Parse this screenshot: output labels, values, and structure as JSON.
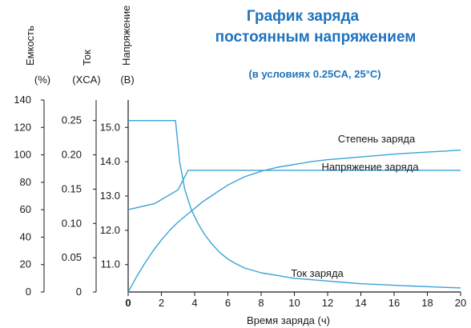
{
  "chart_data": {
    "type": "line",
    "title_line1": "График заряда",
    "title_line2": "постоянным напряжением",
    "subtitle": "(в условиях 0.25CA, 25°C)",
    "xlabel": "Время заряда (ч)",
    "xlim": [
      0,
      20
    ],
    "x_ticks": [
      "0",
      "2",
      "4",
      "6",
      "8",
      "10",
      "12",
      "14",
      "16",
      "18",
      "20"
    ],
    "axes": {
      "capacity": {
        "label": "Емкость",
        "unit": "(%)",
        "lim": [
          0,
          140
        ],
        "ticks": [
          "0",
          "20",
          "40",
          "60",
          "80",
          "100",
          "120",
          "140"
        ]
      },
      "current": {
        "label": "Ток",
        "unit": "(XCA)",
        "lim": [
          0,
          0.28
        ],
        "ticks": [
          "0",
          "0.05",
          "0.10",
          "0.15",
          "0.20",
          "0.25"
        ]
      },
      "voltage": {
        "label": "Напряжение",
        "unit": "(В)",
        "lim": [
          10.2,
          15.8
        ],
        "ticks": [
          "11.0",
          "12.0",
          "13.0",
          "14.0",
          "15.0"
        ]
      }
    },
    "series": [
      {
        "name": "Степень заряда",
        "axis": "capacity",
        "color": "#3aa3d6",
        "x": [
          0,
          0.5,
          1,
          1.5,
          2,
          2.5,
          3,
          3.5,
          4,
          4.5,
          5,
          5.5,
          6,
          6.5,
          7,
          7.5,
          8,
          9,
          10,
          11,
          12,
          13,
          14,
          15,
          16,
          17,
          18,
          19,
          20
        ],
        "values": [
          0,
          11,
          21,
          30,
          38,
          45,
          51,
          56,
          61,
          66,
          70,
          74,
          78,
          81,
          84,
          86,
          88,
          91,
          93,
          95,
          96.5,
          97.5,
          98.5,
          99.5,
          100.5,
          101.3,
          102,
          102.7,
          103.5
        ]
      },
      {
        "name": "Напряжение заряда",
        "axis": "voltage",
        "color": "#3aa3d6",
        "x": [
          0,
          1.6,
          3.0,
          3.6,
          4,
          6,
          8,
          10,
          12,
          14,
          16,
          18,
          20
        ],
        "values": [
          12.6,
          12.78,
          13.18,
          13.75,
          13.75,
          13.75,
          13.75,
          13.75,
          13.75,
          13.75,
          13.75,
          13.75,
          13.75
        ]
      },
      {
        "name": "Ток заряда",
        "axis": "current",
        "color": "#3aa3d6",
        "x": [
          0,
          1,
          2,
          2.85,
          3.1,
          3.4,
          3.8,
          4.2,
          4.6,
          5,
          5.5,
          6,
          6.5,
          7,
          8,
          9,
          10,
          11,
          12,
          13,
          14,
          15,
          16,
          17,
          18,
          19,
          20
        ],
        "values": [
          0.25,
          0.25,
          0.25,
          0.25,
          0.19,
          0.15,
          0.12,
          0.1,
          0.084,
          0.071,
          0.058,
          0.048,
          0.041,
          0.035,
          0.028,
          0.024,
          0.02,
          0.018,
          0.016,
          0.014,
          0.012,
          0.011,
          0.0098,
          0.0088,
          0.0078,
          0.0068,
          0.006
        ]
      }
    ],
    "grid": false,
    "line_color": "#3aa3d6",
    "title_color": "#1e73be"
  }
}
